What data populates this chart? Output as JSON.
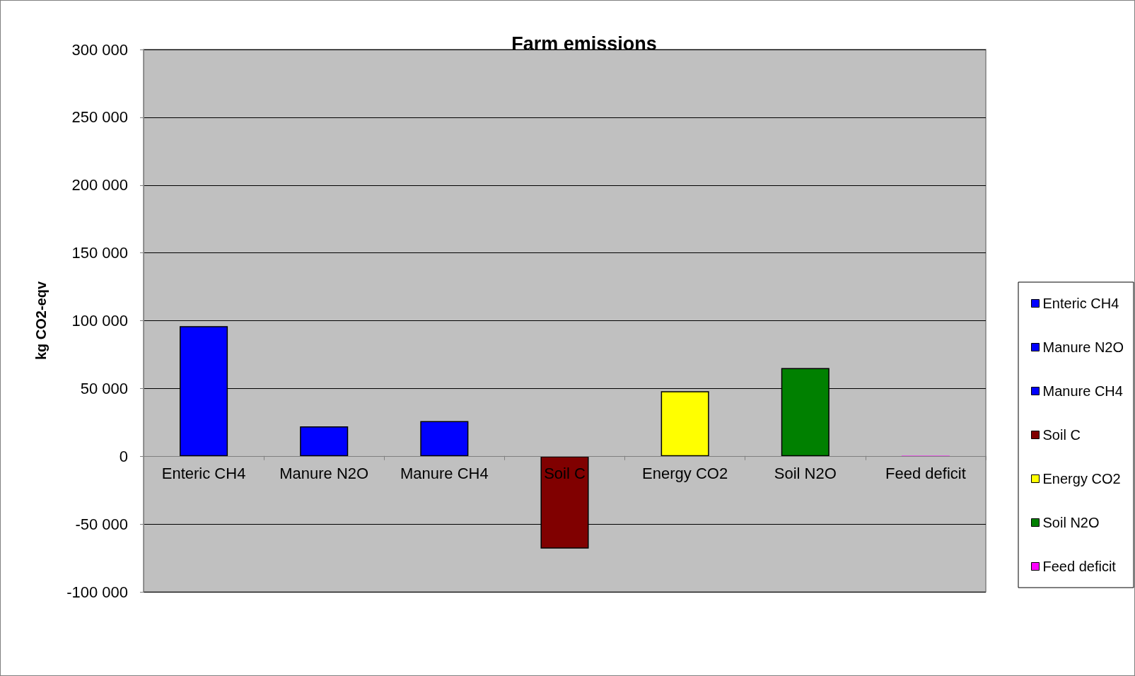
{
  "chart_data": {
    "type": "bar",
    "title": "Farm emissions",
    "ylabel": "kg CO2-eqv",
    "categories": [
      "Enteric CH4",
      "Manure N2O",
      "Manure CH4",
      "Soil C",
      "Energy CO2",
      "Soil N2O",
      "Feed deficit"
    ],
    "series": [
      {
        "name": "Enteric CH4",
        "color": "#0000ff",
        "values": [
          96000,
          null,
          null,
          null,
          null,
          null,
          null
        ]
      },
      {
        "name": "Manure N2O",
        "color": "#0000ff",
        "values": [
          null,
          22000,
          null,
          null,
          null,
          null,
          null
        ]
      },
      {
        "name": "Manure CH4",
        "color": "#0000ff",
        "values": [
          null,
          null,
          26000,
          null,
          null,
          null,
          null
        ]
      },
      {
        "name": "Soil C",
        "color": "#800000",
        "values": [
          null,
          null,
          null,
          -68000,
          null,
          null,
          null
        ]
      },
      {
        "name": "Energy CO2",
        "color": "#ffff00",
        "values": [
          null,
          null,
          null,
          null,
          48000,
          null,
          null
        ]
      },
      {
        "name": "Soil N2O",
        "color": "#008000",
        "values": [
          null,
          null,
          null,
          null,
          null,
          65000,
          null
        ]
      },
      {
        "name": "Feed deficit",
        "color": "#ff00ff",
        "values": [
          null,
          null,
          null,
          null,
          null,
          null,
          0
        ]
      }
    ],
    "ylim": [
      -100000,
      300000
    ],
    "yticks": [
      {
        "value": -100000,
        "label": "-100 000"
      },
      {
        "value": -50000,
        "label": "-50 000"
      },
      0,
      {
        "value": 50000,
        "label": "50 000"
      },
      {
        "value": 100000,
        "label": "100 000"
      },
      {
        "value": 150000,
        "label": "150 000"
      },
      {
        "value": 200000,
        "label": "200 000"
      },
      {
        "value": 250000,
        "label": "250 000"
      },
      {
        "value": 300000,
        "label": "300 000"
      }
    ],
    "stacked": true,
    "grid": "y",
    "legend": "right"
  }
}
